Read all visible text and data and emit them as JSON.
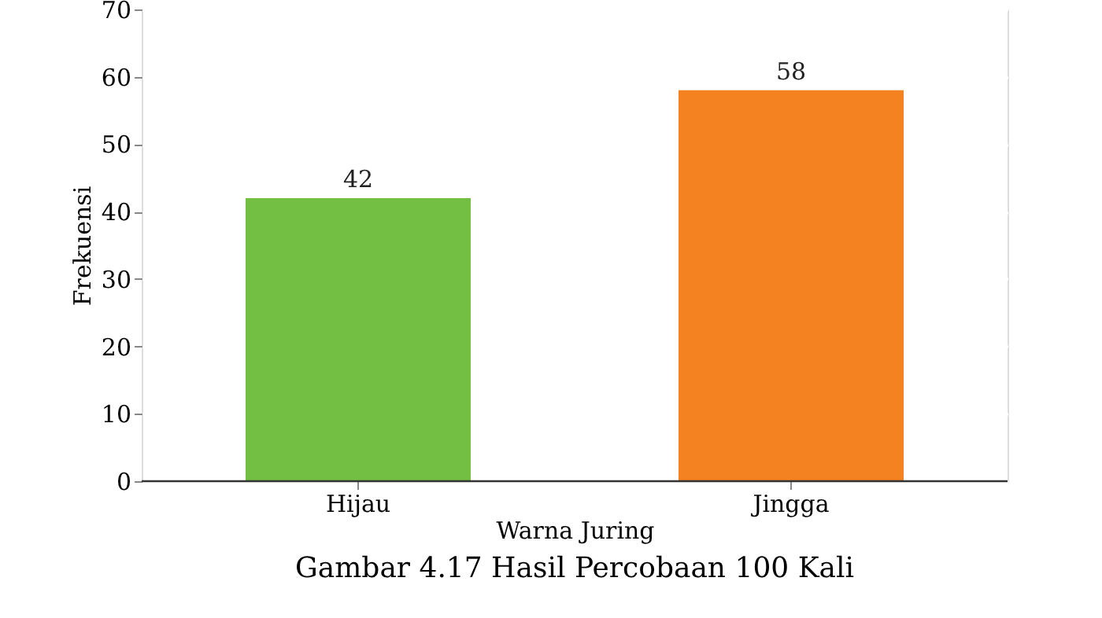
{
  "chart_data": {
    "type": "bar",
    "title": "Gambar 4.17 Hasil Percobaan 100 Kali",
    "xlabel": "Warna Juring",
    "ylabel": "Frekuensi",
    "categories": [
      "Hijau",
      "Jingga"
    ],
    "values": [
      42,
      58
    ],
    "colors": [
      "#72bf44",
      "#f58220"
    ],
    "data_labels": true,
    "ylim": [
      0,
      70
    ],
    "yticks": [
      0,
      10,
      20,
      30,
      40,
      50,
      60,
      70
    ],
    "grid": true
  }
}
